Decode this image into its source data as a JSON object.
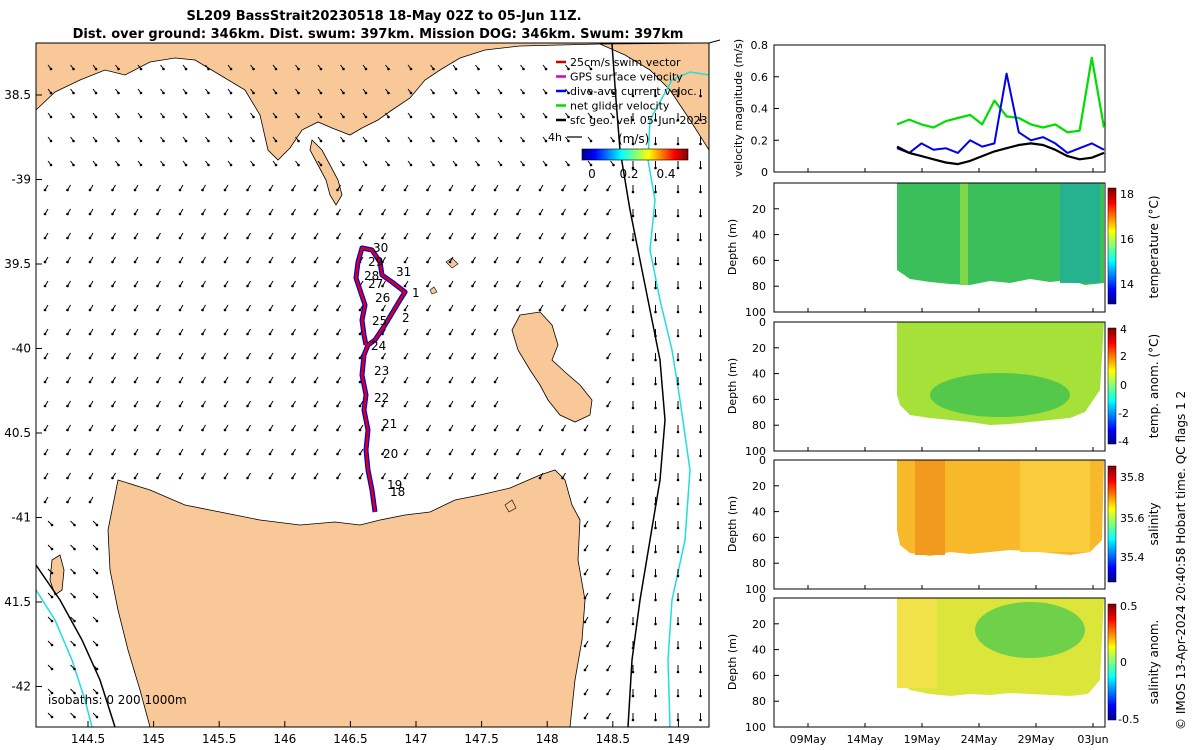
{
  "title_line1": "SL209 BassStrait20230518 18-May 02Z to 05-Jun 11Z.",
  "title_line2": "Dist. over ground: 346km. Dist. swum: 397km. Mission DOG: 346km. Swum: 397km",
  "map": {
    "lon_ticks": [
      "144.5",
      "145",
      "145.5",
      "146",
      "146.5",
      "147",
      "147.5",
      "148",
      "148.5",
      "149"
    ],
    "lat_ticks": [
      "38.5",
      "-39",
      "39.5",
      "-40",
      "40.5",
      "-41",
      "41.5",
      "-42"
    ],
    "isobath_label": "isobaths: 0   200  1000m",
    "legend": [
      {
        "label": "25cm/s swim vector",
        "color": "#d00000"
      },
      {
        "label": "GPS surface velocity",
        "color": "#d000d0"
      },
      {
        "label": "dive-avg current veloc.",
        "color": "#0000ff"
      },
      {
        "label": "net glider velocity",
        "color": "#00dd00"
      },
      {
        "label": "sfc geo. vel. 05-Jun-2023",
        "color": "#000000"
      }
    ],
    "arrow_scale_label": "4h",
    "colorbar_unit": "(m/s)",
    "colorbar_ticks": [
      "0",
      "0.2",
      "0.4"
    ],
    "track_day_labels": [
      "30",
      "29",
      "31",
      "28",
      "27",
      "26",
      "1",
      "25",
      "2",
      "24",
      "23",
      "22",
      "21",
      "20",
      "19",
      "18"
    ],
    "colors": {
      "land": "#f9c898",
      "track_outer": "#e00000",
      "track_inner": "#0000ee",
      "isobath_200": "#000000",
      "isobath_1000": "#22dddd"
    }
  },
  "panels": {
    "velocity": {
      "ylabel": "velocity magnitude (m/s)",
      "yticks": [
        "0",
        "0.2",
        "0.4",
        "0.6",
        "0.8"
      ]
    },
    "temperature": {
      "ylabel": "Depth (m)",
      "clabel": "temperature (°C)",
      "cticks": [
        "18",
        "16",
        "14"
      ]
    },
    "temp_anom": {
      "ylabel": "Depth (m)",
      "clabel": "temp. anom. (°C)",
      "cticks": [
        "4",
        "2",
        "0",
        "-2",
        "-4"
      ]
    },
    "salinity": {
      "ylabel": "Depth (m)",
      "clabel": "salinity",
      "cticks": [
        "35.8",
        "35.6",
        "35.4"
      ]
    },
    "sal_anom": {
      "ylabel": "Depth (m)",
      "clabel": "salinity anom.",
      "cticks": [
        "0.5",
        "0",
        "-0.5"
      ]
    },
    "depth_ticks": [
      "0",
      "20",
      "40",
      "60",
      "80",
      "100"
    ],
    "depth_ticks_first": [
      "20",
      "40",
      "60",
      "80",
      "100"
    ],
    "time_ticks": [
      "09May",
      "14May",
      "19May",
      "24May",
      "29May",
      "03Jun"
    ]
  },
  "footer": "© IMOS 13-Apr-2024 20:40:58 Hobart time. QC flags 1  2",
  "chart_data": {
    "type": "line",
    "title": "SL209 BassStrait20230518 18-May 02Z to 05-Jun 11Z.",
    "ylabel": "velocity magnitude (m/s)",
    "ylim": [
      0,
      0.8
    ],
    "x": [
      "19May",
      "20May",
      "21May",
      "22May",
      "23May",
      "24May",
      "25May",
      "26May",
      "27May",
      "28May",
      "29May",
      "30May",
      "31May",
      "01Jun",
      "02Jun",
      "03Jun",
      "04Jun",
      "05Jun"
    ],
    "series": [
      {
        "values": [
          0.3,
          0.33,
          0.3,
          0.28,
          0.32,
          0.34,
          0.36,
          0.3,
          0.45,
          0.35,
          0.34,
          0.3,
          0.28,
          0.3,
          0.25,
          0.26,
          0.72,
          0.28
        ]
      },
      {
        "values": [
          0.15,
          0.12,
          0.18,
          0.14,
          0.15,
          0.12,
          0.2,
          0.16,
          0.18,
          0.62,
          0.25,
          0.2,
          0.22,
          0.18,
          0.12,
          0.15,
          0.18,
          0.14
        ]
      },
      {
        "values": [
          0.16,
          0.12,
          0.1,
          0.08,
          0.06,
          0.05,
          0.07,
          0.1,
          0.13,
          0.15,
          0.17,
          0.18,
          0.17,
          0.14,
          0.1,
          0.08,
          0.09,
          0.12
        ]
      }
    ]
  }
}
